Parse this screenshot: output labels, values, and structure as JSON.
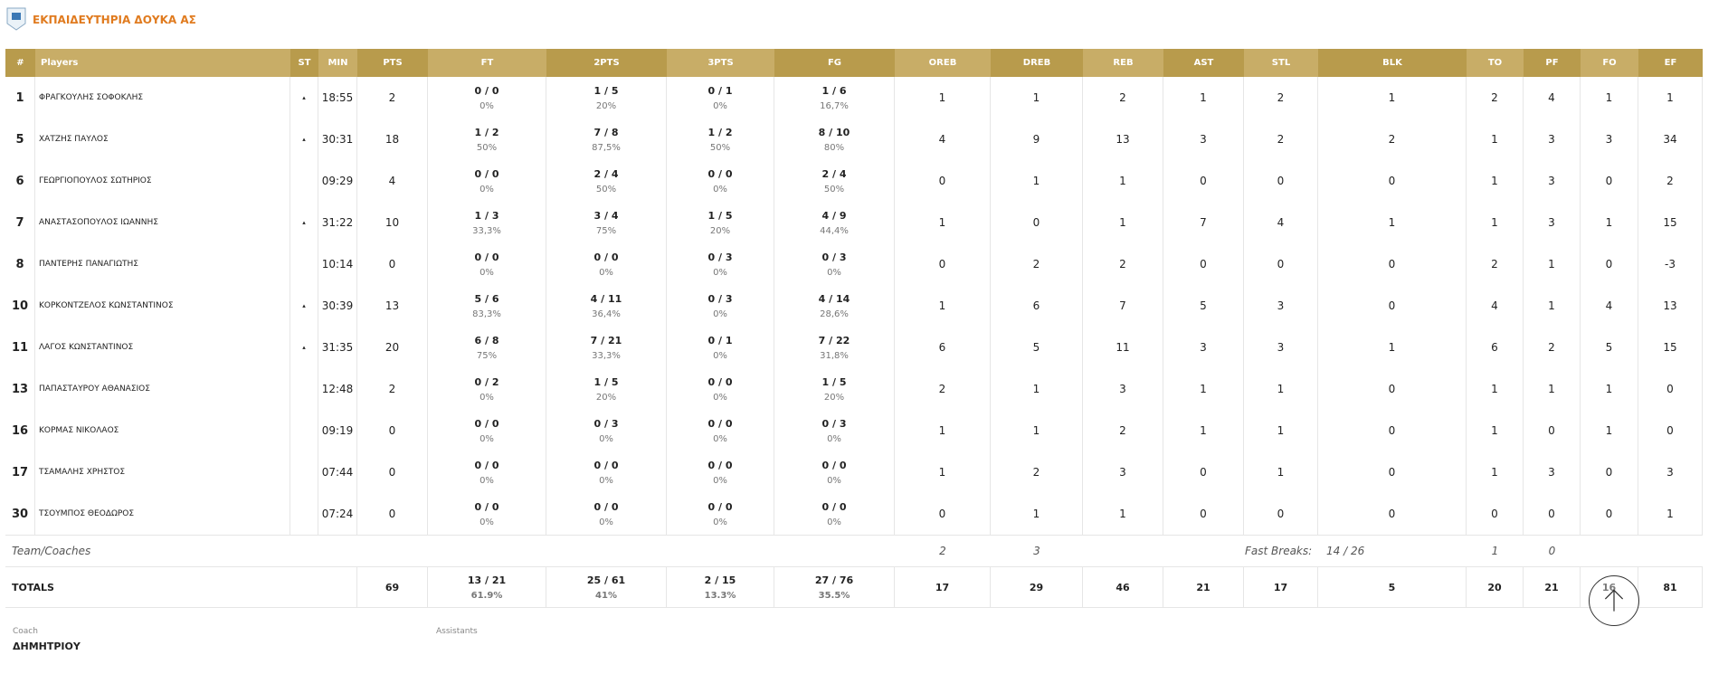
{
  "header": {
    "title": "ΕΚΠΑΙΔΕΥΤΗΡΙΑ ΔΟΥΚΑ ΑΣ"
  },
  "table": {
    "columns": [
      "#",
      "Players",
      "ST",
      "MIN",
      "PTS",
      "FT",
      "2PTS",
      "3PTS",
      "FG",
      "OREB",
      "DREB",
      "REB",
      "AST",
      "STL",
      "BLK",
      "TO",
      "PF",
      "FO",
      "EF"
    ],
    "rows": [
      [
        1,
        "ΦΡΑΓΚΟΥΛΗΣ ΣΟΦΟΚΛΗΣ",
        "▴",
        "18:55",
        2,
        [
          "0 / 0",
          "0%"
        ],
        [
          "1 / 5",
          "20%"
        ],
        [
          "0 / 1",
          "0%"
        ],
        [
          "1 / 6",
          "16,7%"
        ],
        1,
        1,
        2,
        1,
        2,
        1,
        2,
        4,
        1,
        1
      ],
      [
        5,
        "ΧΑΤΖΗΣ ΠΑΥΛΟΣ",
        "▴",
        "30:31",
        18,
        [
          "1 / 2",
          "50%"
        ],
        [
          "7 / 8",
          "87,5%"
        ],
        [
          "1 / 2",
          "50%"
        ],
        [
          "8 / 10",
          "80%"
        ],
        4,
        9,
        13,
        3,
        2,
        2,
        1,
        3,
        3,
        34
      ],
      [
        6,
        "ΓΕΩΡΓΙΟΠΟΥΛΟΣ ΣΩΤΗΡΙΟΣ",
        null,
        "09:29",
        4,
        [
          "0 / 0",
          "0%"
        ],
        [
          "2 / 4",
          "50%"
        ],
        [
          "0 / 0",
          "0%"
        ],
        [
          "2 / 4",
          "50%"
        ],
        0,
        1,
        1,
        0,
        0,
        0,
        1,
        3,
        0,
        2
      ],
      [
        7,
        "ΑΝΑΣΤΑΣΟΠΟΥΛΟΣ ΙΩΑΝΝΗΣ",
        "▴",
        "31:22",
        10,
        [
          "1 / 3",
          "33,3%"
        ],
        [
          "3 / 4",
          "75%"
        ],
        [
          "1 / 5",
          "20%"
        ],
        [
          "4 / 9",
          "44,4%"
        ],
        1,
        0,
        1,
        7,
        4,
        1,
        1,
        3,
        1,
        15
      ],
      [
        8,
        "ΠΑΝΤΕΡΗΣ ΠΑΝΑΓΙΩΤΗΣ",
        null,
        "10:14",
        0,
        [
          "0 / 0",
          "0%"
        ],
        [
          "0 / 0",
          "0%"
        ],
        [
          "0 / 3",
          "0%"
        ],
        [
          "0 / 3",
          "0%"
        ],
        0,
        2,
        2,
        0,
        0,
        0,
        2,
        1,
        0,
        -3
      ],
      [
        10,
        "ΚΟΡΚΟΝΤΖΕΛΟΣ ΚΩΝΣΤΑΝΤΙΝΟΣ",
        "▴",
        "30:39",
        13,
        [
          "5 / 6",
          "83,3%"
        ],
        [
          "4 / 11",
          "36,4%"
        ],
        [
          "0 / 3",
          "0%"
        ],
        [
          "4 / 14",
          "28,6%"
        ],
        1,
        6,
        7,
        5,
        3,
        0,
        4,
        1,
        4,
        13
      ],
      [
        11,
        "ΛΑΓΟΣ ΚΩΝΣΤΑΝΤΙΝΟΣ",
        "▴",
        "31:35",
        20,
        [
          "6 / 8",
          "75%"
        ],
        [
          "7 / 21",
          "33,3%"
        ],
        [
          "0 / 1",
          "0%"
        ],
        [
          "7 / 22",
          "31,8%"
        ],
        6,
        5,
        11,
        3,
        3,
        1,
        6,
        2,
        5,
        15
      ],
      [
        13,
        "ΠΑΠΑΣΤΑΥΡΟΥ ΑΘΑΝΑΣΙΟΣ",
        null,
        "12:48",
        2,
        [
          "0 / 2",
          "0%"
        ],
        [
          "1 / 5",
          "20%"
        ],
        [
          "0 / 0",
          "0%"
        ],
        [
          "1 / 5",
          "20%"
        ],
        2,
        1,
        3,
        1,
        1,
        0,
        1,
        1,
        1,
        0
      ],
      [
        16,
        "ΚΟΡΜΑΣ ΝΙΚΟΛΑΟΣ",
        null,
        "09:19",
        0,
        [
          "0 / 0",
          "0%"
        ],
        [
          "0 / 3",
          "0%"
        ],
        [
          "0 / 0",
          "0%"
        ],
        [
          "0 / 3",
          "0%"
        ],
        1,
        1,
        2,
        1,
        1,
        0,
        1,
        0,
        1,
        0
      ],
      [
        17,
        "ΤΣΑΜΑΛΗΣ ΧΡΗΣΤΟΣ",
        null,
        "07:44",
        0,
        [
          "0 / 0",
          "0%"
        ],
        [
          "0 / 0",
          "0%"
        ],
        [
          "0 / 0",
          "0%"
        ],
        [
          "0 / 0",
          "0%"
        ],
        1,
        2,
        3,
        0,
        1,
        0,
        1,
        3,
        0,
        3
      ],
      [
        30,
        "ΤΣΟΥΜΠΟΣ ΘΕΟΔΩΡΟΣ",
        null,
        "07:24",
        0,
        [
          "0 / 0",
          "0%"
        ],
        [
          "0 / 0",
          "0%"
        ],
        [
          "0 / 0",
          "0%"
        ],
        [
          "0 / 0",
          "0%"
        ],
        0,
        1,
        1,
        0,
        0,
        0,
        0,
        0,
        0,
        1
      ]
    ],
    "team": {
      "label": "Team/Coaches",
      "oreb": 2,
      "dreb": 3,
      "fast_breaks_label": "Fast Breaks:",
      "fast_breaks": "14 / 26",
      "to": 1,
      "pf": 0
    },
    "totals": {
      "label": "TOTALS",
      "pts": 69,
      "ft": [
        "13 / 21",
        "61.9%"
      ],
      "p2": [
        "25 / 61",
        "41%"
      ],
      "p3": [
        "2 / 15",
        "13.3%"
      ],
      "fg": [
        "27 / 76",
        "35.5%"
      ],
      "oreb": 17,
      "dreb": 29,
      "reb": 46,
      "ast": 21,
      "stl": 17,
      "blk": 5,
      "to": 20,
      "pf": 21,
      "fo": 16,
      "ef": 81
    }
  },
  "coach": {
    "label": "Coach",
    "name": "ΔΗΜΗΤΡΙΟΥ",
    "assistants_label": "Assistants"
  }
}
